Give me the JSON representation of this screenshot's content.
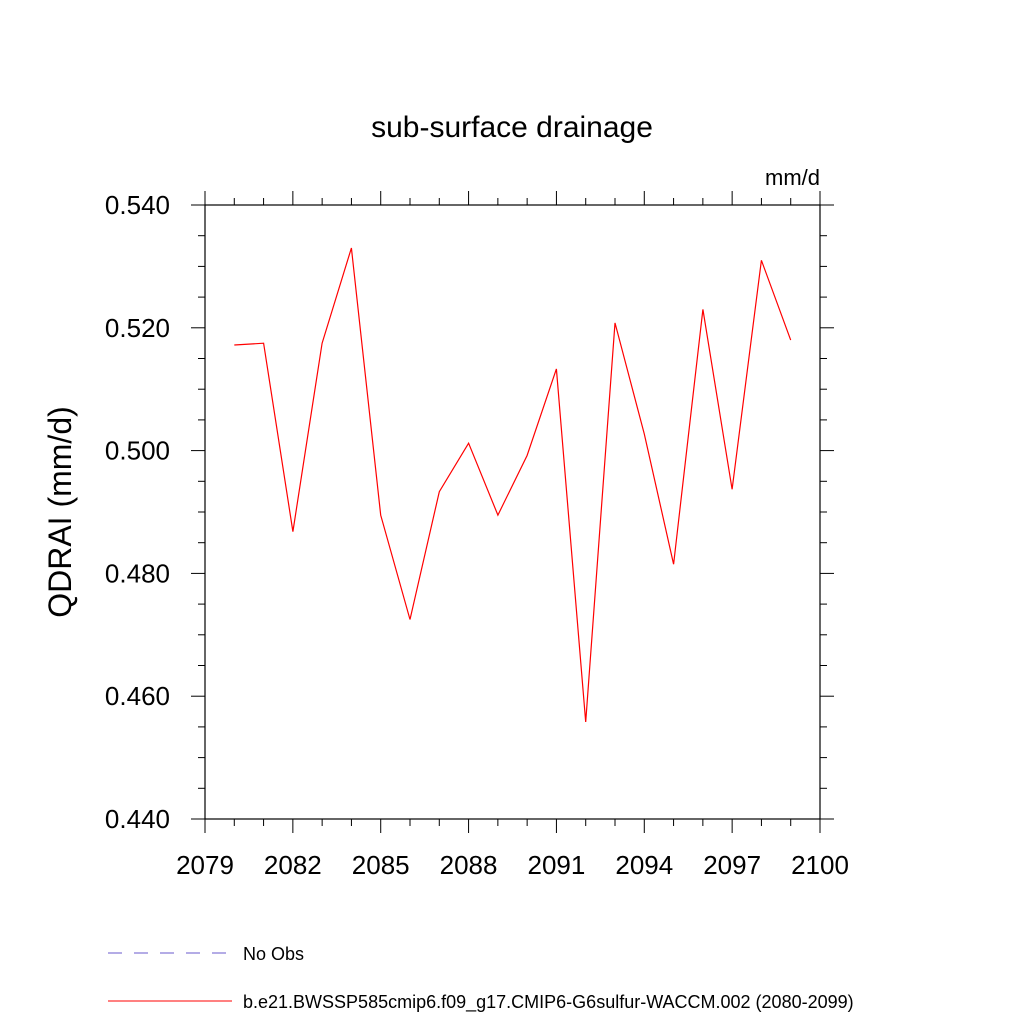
{
  "chart_data": {
    "type": "line",
    "title": "sub-surface drainage",
    "units_label": "mm/d",
    "ylabel": "QDRAI  (mm/d)",
    "xlabel": "",
    "xlim": [
      2079,
      2100
    ],
    "ylim": [
      0.44,
      0.54
    ],
    "x_ticks": [
      2079,
      2082,
      2085,
      2088,
      2091,
      2094,
      2097,
      2100
    ],
    "x_tick_labels": [
      "2079",
      "2082",
      "2085",
      "2088",
      "2091",
      "2094",
      "2097",
      "2100"
    ],
    "y_ticks": [
      0.44,
      0.46,
      0.48,
      0.5,
      0.52,
      0.54
    ],
    "y_tick_labels": [
      "0.440",
      "0.460",
      "0.480",
      "0.500",
      "0.520",
      "0.540"
    ],
    "grid": false,
    "legend_position": "bottom",
    "series": [
      {
        "name": "b.e21.BWSSP585cmip6.f09_g17.CMIP6-G6sulfur-WACCM.002 (2080-2099)",
        "color": "#ff0000",
        "x": [
          2080,
          2081,
          2082,
          2083,
          2084,
          2085,
          2086,
          2087,
          2088,
          2089,
          2090,
          2091,
          2092,
          2093,
          2094,
          2095,
          2096,
          2097,
          2098,
          2099
        ],
        "values": [
          0.5172,
          0.5175,
          0.4868,
          0.5175,
          0.533,
          0.4895,
          0.4725,
          0.4933,
          0.5012,
          0.4895,
          0.4992,
          0.5133,
          0.4558,
          0.5208,
          0.5027,
          0.4815,
          0.523,
          0.4937,
          0.531,
          0.518
        ]
      }
    ],
    "legend": [
      {
        "label": "No Obs",
        "color": "#6a5acd",
        "style": "dashed"
      },
      {
        "label": "b.e21.BWSSP585cmip6.f09_g17.CMIP6-G6sulfur-WACCM.002 (2080-2099)",
        "color": "#ff0000",
        "style": "solid"
      }
    ]
  }
}
